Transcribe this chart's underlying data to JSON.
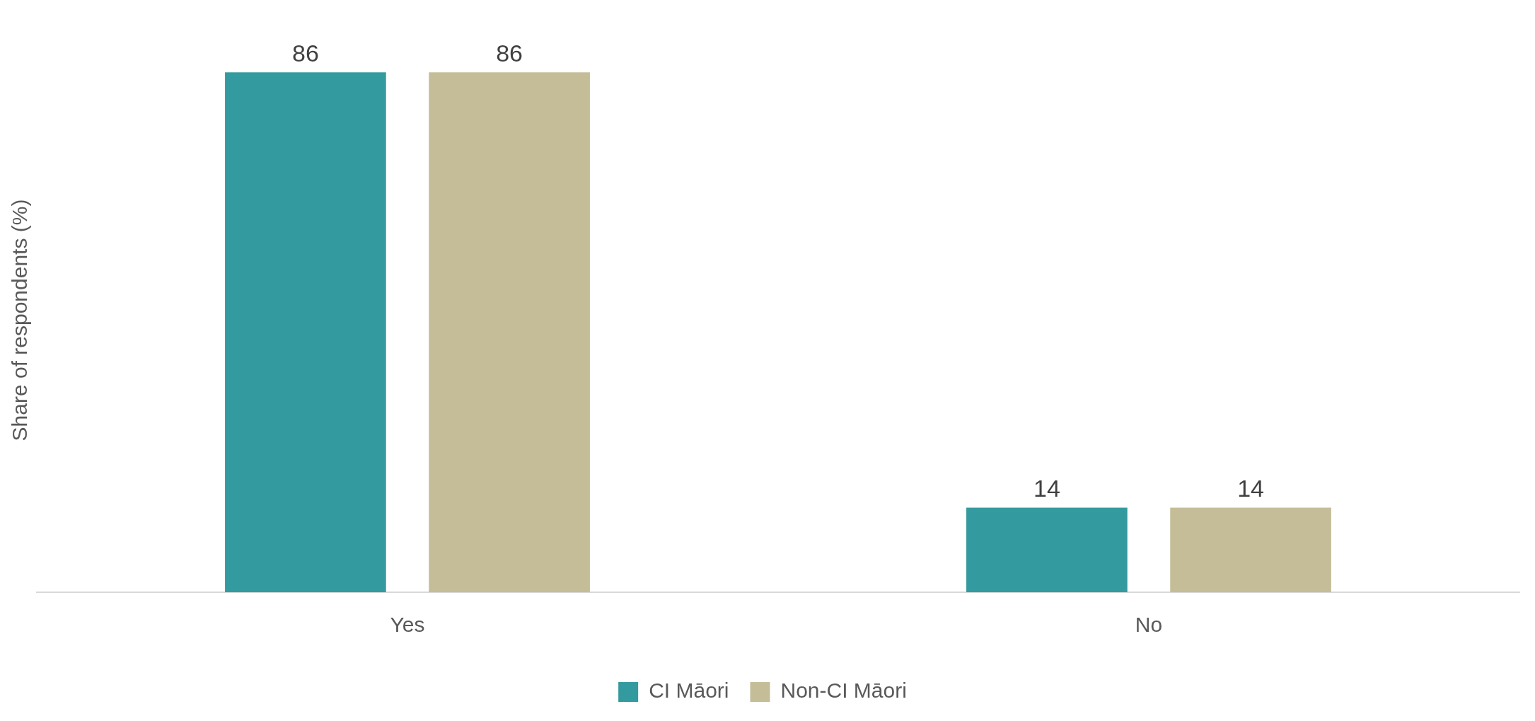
{
  "chart_data": {
    "type": "bar",
    "ylabel": "Share of respondents (%)",
    "categories": [
      "Yes",
      "No"
    ],
    "series": [
      {
        "name": "CI Māori",
        "color": "#339b9f",
        "values": [
          86,
          14
        ]
      },
      {
        "name": "Non-CI Māori",
        "color": "#c5bd98",
        "values": [
          86,
          14
        ]
      }
    ],
    "data_labels": true,
    "grid": false,
    "legend": "bottom",
    "tick_labels": "x"
  }
}
